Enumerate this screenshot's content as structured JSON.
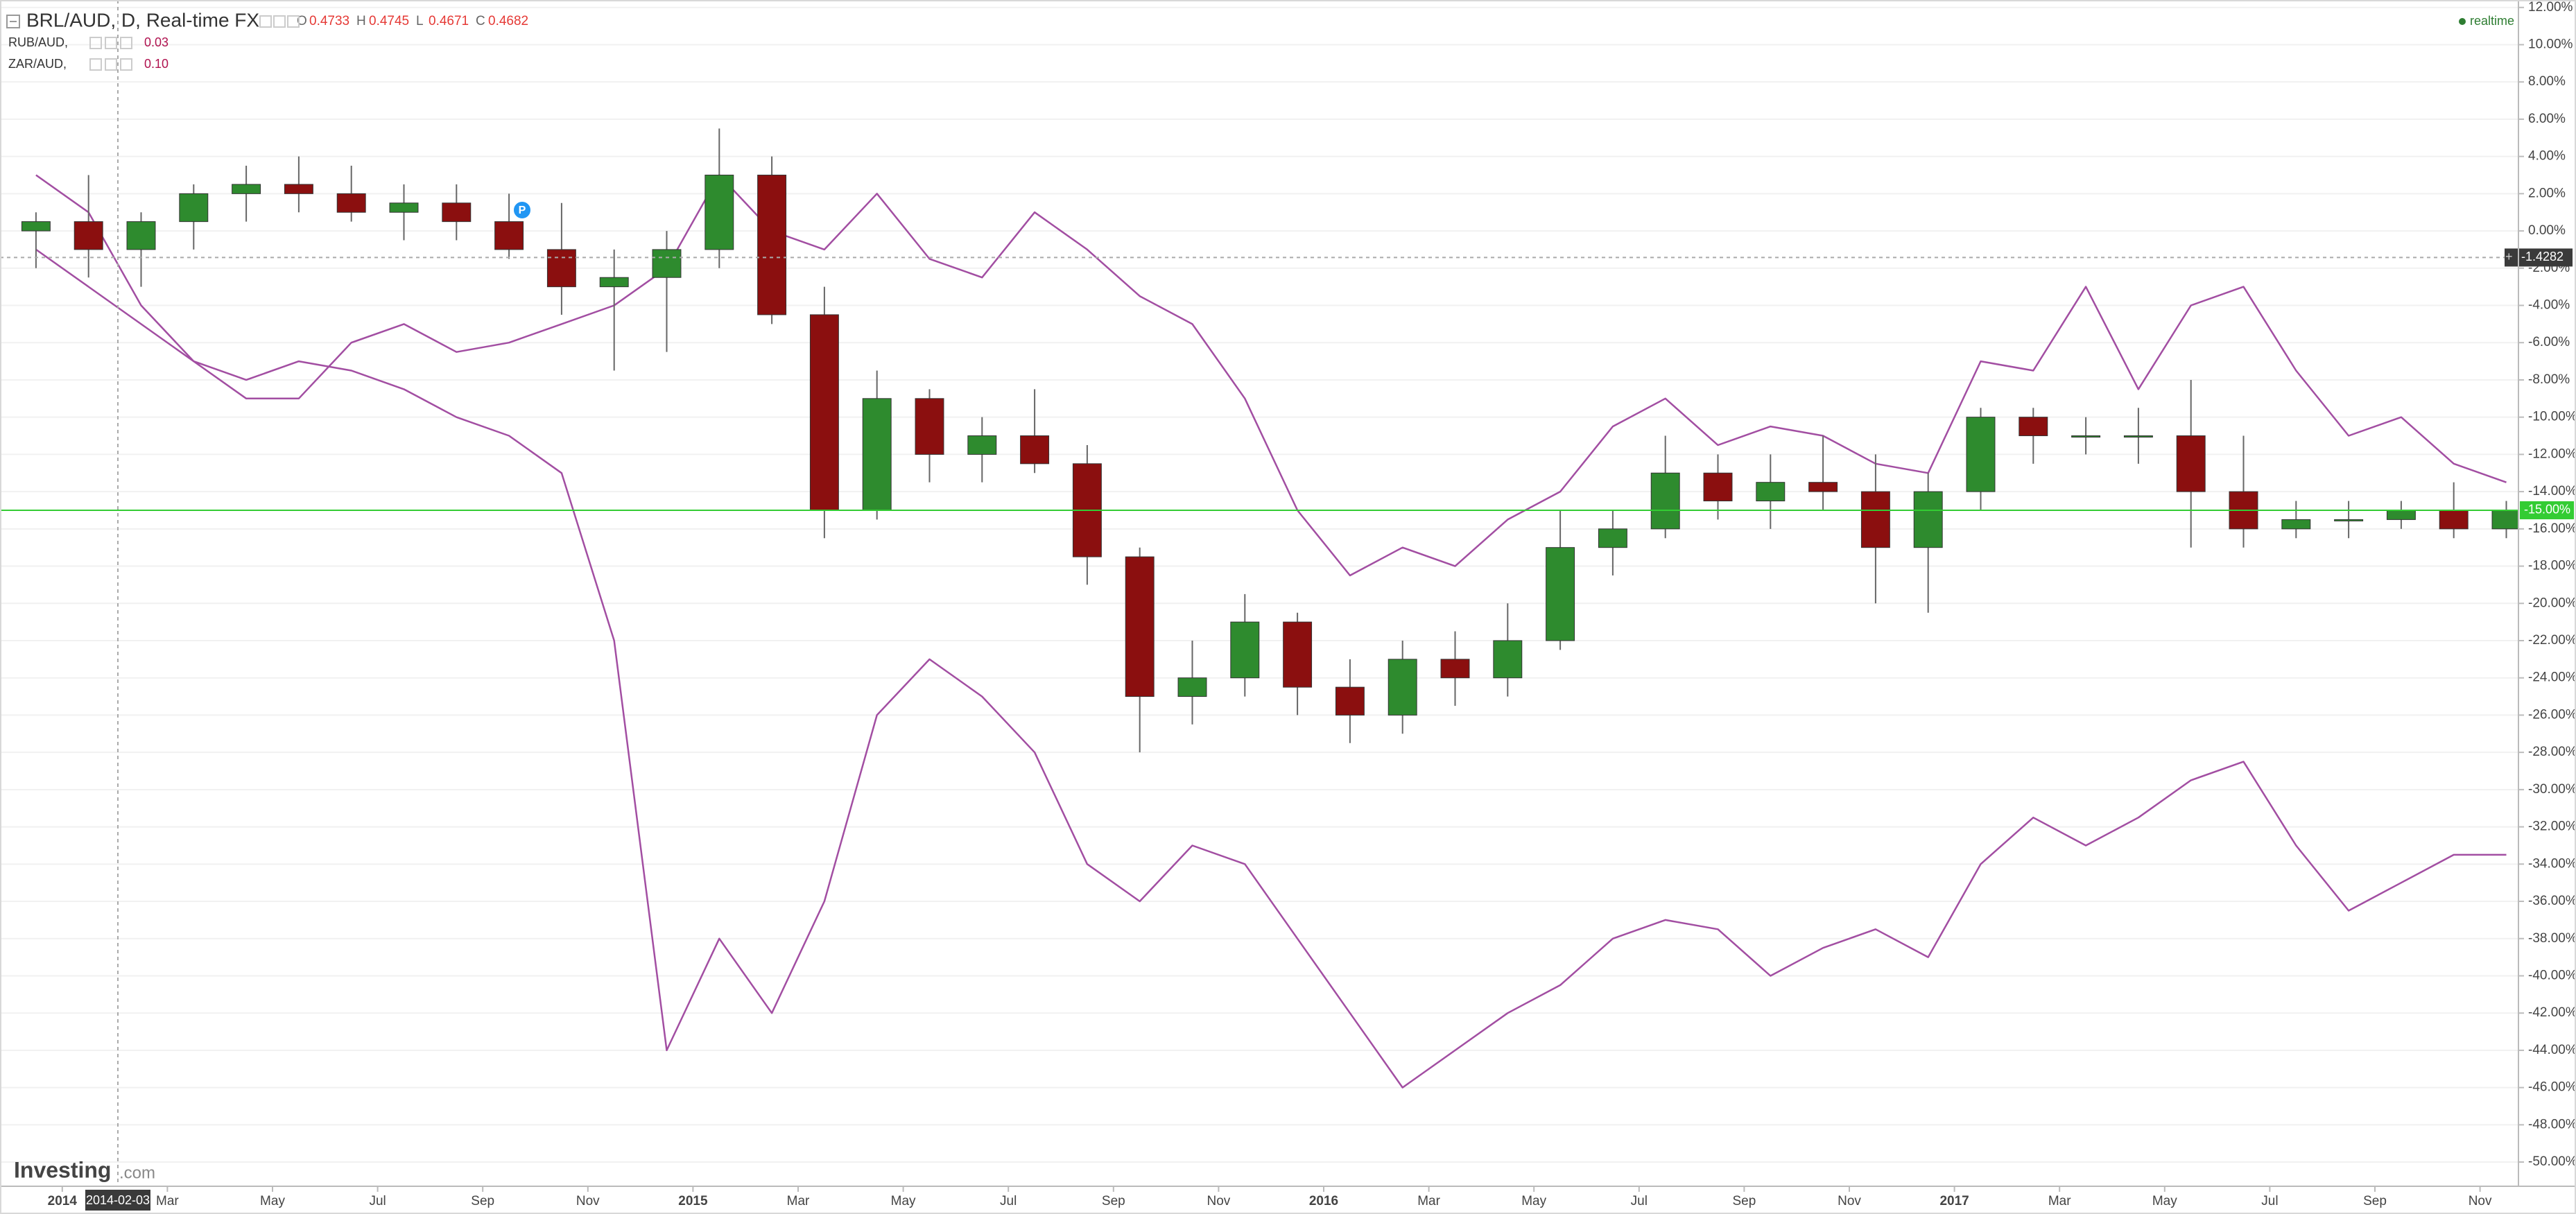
{
  "header": {
    "title": "BRL/AUD, D, Real-time FX",
    "quote": [
      {
        "label": "O",
        "value": 0.4733
      },
      {
        "label": "H",
        "value": 0.4745
      },
      {
        "label": "L",
        "value": 0.4671
      },
      {
        "label": "C",
        "value": 0.4682
      }
    ],
    "status": "realtime",
    "logo": "Investing",
    "logo_suffix": ".com"
  },
  "chart_data": {
    "type": "candlestick",
    "categories": [
      null,
      "2014",
      null,
      "Mar",
      null,
      "May",
      null,
      "Jul",
      null,
      "Sep",
      null,
      "Nov",
      null,
      "2015",
      null,
      "Mar",
      null,
      "May",
      null,
      "Jul",
      null,
      "Sep",
      null,
      "Nov",
      null,
      "2016",
      null,
      "Mar",
      null,
      "May",
      null,
      "Jul",
      null,
      "Sep",
      null,
      "Nov",
      null,
      "2017",
      null,
      "Mar",
      null,
      "May",
      null,
      "Jul",
      null,
      "Sep",
      null,
      "Nov"
    ],
    "series": [
      {
        "type": "candlestick",
        "up_color": "#2e8b2e",
        "down_color": "#8b0f0f",
        "wick_color": "#666666",
        "open": [
          0,
          0.5,
          -1,
          0.5,
          2,
          2.5,
          2,
          1,
          1.5,
          0.5,
          -1,
          -3,
          -2.5,
          -1,
          3,
          -4.5,
          -15,
          -9,
          -12,
          -11,
          -12.5,
          -17.5,
          -25,
          -24,
          -21,
          -24.5,
          -26,
          -23,
          -24,
          -22,
          -17,
          -16,
          -13,
          -14.5,
          -13.5,
          -14,
          -17,
          -14,
          -10,
          -11,
          -11,
          -11,
          -14,
          -16,
          -15.5,
          -15.5,
          -15,
          -16
        ],
        "high": [
          1,
          3,
          1,
          2.5,
          3.5,
          4,
          3.5,
          2.5,
          2.5,
          2,
          1.5,
          -1,
          0,
          5.5,
          4,
          -3,
          -7.5,
          -8.5,
          -10,
          -8.5,
          -11.5,
          -17,
          -22,
          -19.5,
          -20.5,
          -23,
          -22,
          -21.5,
          -20,
          -15,
          -15,
          -11,
          -12,
          -12,
          -11,
          -12,
          -13,
          -9.5,
          -9.5,
          -10,
          -9.5,
          -8,
          -11,
          -14.5,
          -14.5,
          -14.5,
          -13.5,
          -14.5
        ],
        "low": [
          -2,
          -2.5,
          -3,
          -1,
          0.5,
          1,
          0.5,
          -0.5,
          -0.5,
          -1.5,
          -4.5,
          -7.5,
          -6.5,
          -2,
          -5,
          -16.5,
          -15.5,
          -13.5,
          -13.5,
          -13,
          -19,
          -28,
          -26.5,
          -25,
          -26,
          -27.5,
          -27,
          -25.5,
          -25,
          -22.5,
          -18.5,
          -16.5,
          -15.5,
          -16,
          -15,
          -20,
          -20.5,
          -15,
          -12.5,
          -12,
          -12.5,
          -17,
          -17,
          -16.5,
          -16.5,
          -16,
          -16.5,
          -16.5
        ],
        "close": [
          0.5,
          -1,
          0.5,
          2,
          2.5,
          2,
          1,
          1.5,
          0.5,
          -1,
          -3,
          -2.5,
          -1,
          3,
          -4.5,
          -15,
          -9,
          -12,
          -11,
          -12.5,
          -17.5,
          -25,
          -24,
          -21,
          -24.5,
          -26,
          -23,
          -24,
          -22,
          -17,
          -16,
          -13,
          -14.5,
          -13.5,
          -14,
          -17,
          -14,
          -10,
          -11,
          -11,
          -11,
          -14,
          -16,
          -15.5,
          -15.5,
          -15,
          -16,
          -15
        ]
      },
      {
        "type": "line",
        "name": "RUB/AUD,",
        "legend_value": 0.03,
        "color": "#a24ea2",
        "values": [
          -1,
          -3,
          -5,
          -7,
          -8,
          -7,
          -7.5,
          -8.5,
          -10,
          -11,
          -13,
          -22,
          -44,
          -38,
          -42,
          -36,
          -26,
          -23,
          -25,
          -28,
          -34,
          -36,
          -33,
          -34,
          -38,
          -42,
          -46,
          -44,
          -42,
          -40.5,
          -38,
          -37,
          -37.5,
          -40,
          -38.5,
          -37.5,
          -39,
          -34,
          -31.5,
          -33,
          -31.5,
          -29.5,
          -28.5,
          -33,
          -36.5,
          -35,
          -33.5,
          -33.5
        ]
      },
      {
        "type": "line",
        "name": "ZAR/AUD,",
        "legend_value": {
          "value": 0.1,
          "label": "0.10"
        },
        "color": "#a24ea2",
        "values": [
          3,
          1,
          -4,
          -7,
          -9,
          -9,
          -6,
          -5,
          -6.5,
          -6,
          -5,
          -4,
          -2,
          3,
          0,
          -1,
          2,
          -1.5,
          -2.5,
          1,
          -1,
          -3.5,
          -5,
          -9,
          -15,
          -18.5,
          -17,
          -18,
          -15.5,
          -14,
          -10.5,
          -9,
          -11.5,
          -10.5,
          -11,
          -12.5,
          -13,
          -7,
          -7.5,
          -3,
          -8.5,
          -4,
          -3,
          -7.5,
          -11,
          -10,
          -12.5,
          -13.5
        ]
      }
    ],
    "ylim": [
      -51.3,
      12.4
    ],
    "yticks": [
      {
        "value": 12,
        "label": "12.00%"
      },
      {
        "value": 10,
        "label": "10.00%"
      },
      {
        "value": 8,
        "label": "8.00%"
      },
      {
        "value": 6,
        "label": "6.00%"
      },
      {
        "value": 4,
        "label": "4.00%"
      },
      {
        "value": 2,
        "label": "2.00%"
      },
      {
        "value": 0,
        "label": "0.00%"
      },
      {
        "value": -2,
        "label": "-2.00%"
      },
      {
        "value": -4,
        "label": "-4.00%"
      },
      {
        "value": -6,
        "label": "-6.00%"
      },
      {
        "value": -8,
        "label": "-8.00%"
      },
      {
        "value": -10,
        "label": "-10.00%"
      },
      {
        "value": -12,
        "label": "-12.00%"
      },
      {
        "value": -14,
        "label": "-14.00%"
      },
      {
        "value": -16,
        "label": "-16.00%"
      },
      {
        "value": -18,
        "label": "-18.00%"
      },
      {
        "value": -20,
        "label": "-20.00%"
      },
      {
        "value": -22,
        "label": "-22.00%"
      },
      {
        "value": -24,
        "label": "-24.00%"
      },
      {
        "value": -26,
        "label": "-26.00%"
      },
      {
        "value": -28,
        "label": "-28.00%"
      },
      {
        "value": -30,
        "label": "-30.00%"
      },
      {
        "value": -32,
        "label": "-32.00%"
      },
      {
        "value": -34,
        "label": "-34.00%"
      },
      {
        "value": -36,
        "label": "-36.00%"
      },
      {
        "value": -38,
        "label": "-38.00%"
      },
      {
        "value": -40,
        "label": "-40.00%"
      },
      {
        "value": -42,
        "label": "-42.00%"
      },
      {
        "value": -44,
        "label": "-44.00%"
      },
      {
        "value": -46,
        "label": "-46.00%"
      },
      {
        "value": -48,
        "label": "-48.00%"
      },
      {
        "value": -50,
        "label": "-50.00%"
      }
    ],
    "grid": true,
    "crosshair": {
      "date": "2014-02-03",
      "value": -1.4282
    },
    "last_price": {
      "value": -15,
      "label": "-15.00%",
      "color": "#33cc33"
    },
    "event_marker": "P"
  }
}
